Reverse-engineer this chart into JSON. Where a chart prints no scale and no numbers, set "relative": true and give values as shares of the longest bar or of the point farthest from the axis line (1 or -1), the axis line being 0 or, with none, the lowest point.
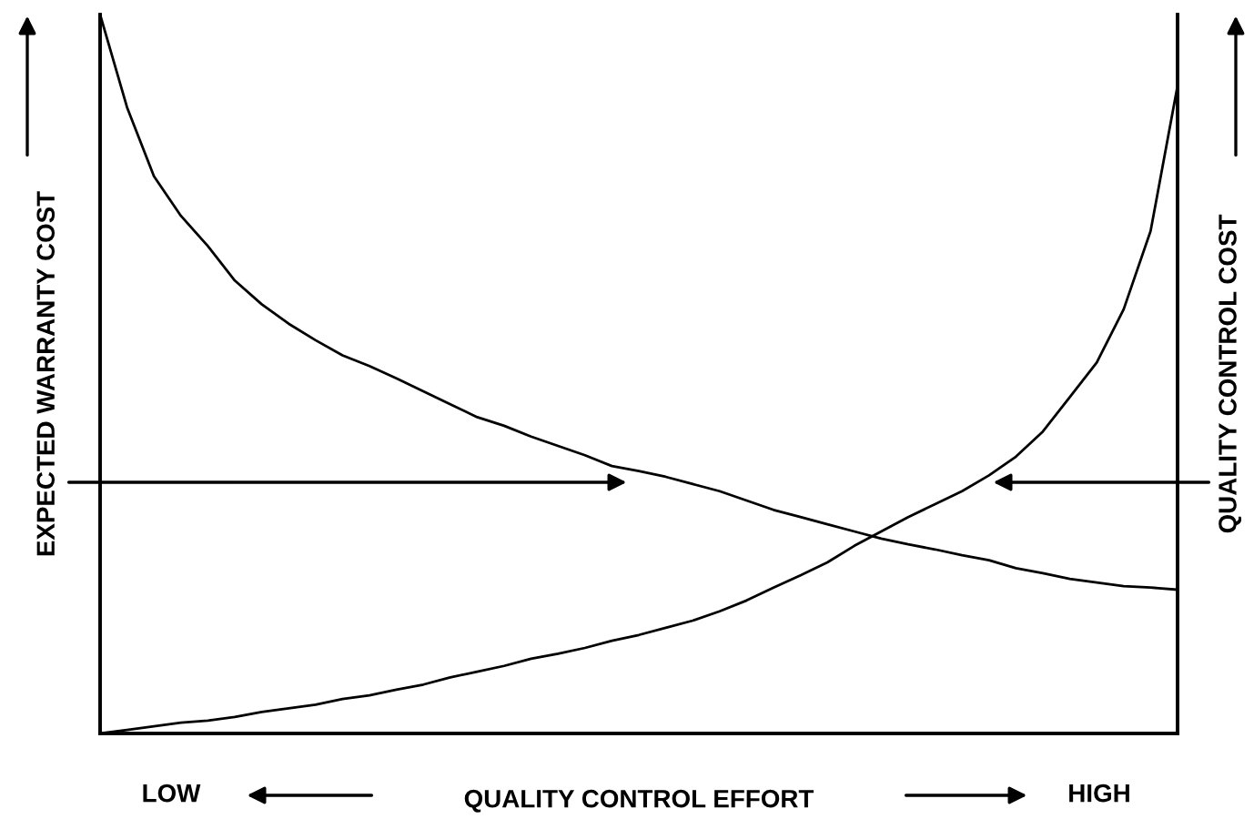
{
  "chart_data": {
    "type": "line",
    "relative": true,
    "xlabel": "QUALITY CONTROL EFFORT",
    "ylabel": "EXPECTED WARRANTY COST",
    "y2label": "QUALITY CONTROL COST",
    "annotations": [
      "LOW",
      "HIGH"
    ],
    "categories": [
      null,
      null,
      null,
      null,
      null,
      null,
      null,
      null,
      null,
      null,
      null,
      null,
      null,
      null,
      null,
      null,
      null,
      null,
      null,
      null,
      null,
      null,
      null,
      null,
      null,
      null,
      null,
      null,
      null,
      null,
      null,
      null,
      null,
      null,
      null,
      null,
      null,
      null,
      null,
      null,
      null
    ],
    "legend": false,
    "marker": "none",
    "line_style": "solid",
    "series": [
      {
        "color": "#000000",
        "values": [
          1.0,
          0.871,
          0.775,
          0.72,
          0.678,
          0.63,
          0.597,
          0.57,
          0.547,
          0.526,
          0.511,
          0.494,
          0.476,
          0.458,
          0.44,
          0.428,
          0.413,
          0.4,
          0.387,
          0.372,
          0.365,
          0.357,
          0.347,
          0.337,
          0.324,
          0.311,
          0.301,
          0.291,
          0.281,
          0.271,
          0.263,
          0.256,
          0.248,
          0.241,
          0.23,
          0.223,
          0.215,
          0.21,
          0.205,
          0.203,
          0.2
        ]
      },
      {
        "color": "#000000",
        "values": [
          0,
          0.005,
          0.01,
          0.015,
          0.018,
          0.023,
          0.03,
          0.035,
          0.04,
          0.048,
          0.053,
          0.061,
          0.068,
          0.078,
          0.086,
          0.094,
          0.104,
          0.111,
          0.119,
          0.129,
          0.137,
          0.147,
          0.157,
          0.17,
          0.185,
          0.203,
          0.22,
          0.238,
          0.261,
          0.281,
          0.301,
          0.319,
          0.337,
          0.359,
          0.385,
          0.42,
          0.468,
          0.516,
          0.59,
          0.699,
          0.901
        ]
      }
    ]
  }
}
